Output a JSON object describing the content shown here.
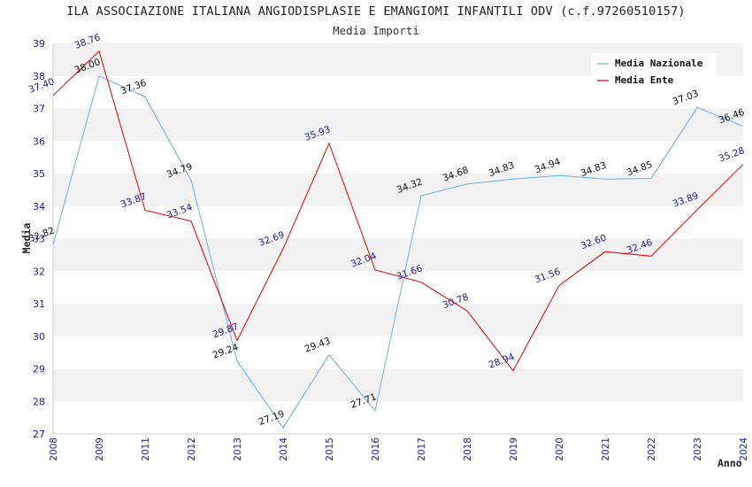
{
  "chart_data": {
    "type": "line",
    "title": "ILA ASSOCIAZIONE ITALIANA ANGIODISPLASIE E EMANGIOMI INFANTILI ODV (c.f.97260510157)",
    "subtitle": "Media Importi",
    "xlabel": "Anno",
    "ylabel": "Media",
    "ylim": [
      27,
      39
    ],
    "yticks": [
      27,
      28,
      29,
      30,
      31,
      32,
      33,
      34,
      35,
      36,
      37,
      38,
      39
    ],
    "categories": [
      "2008",
      "2009",
      "2011",
      "2012",
      "2013",
      "2014",
      "2015",
      "2016",
      "2017",
      "2018",
      "2019",
      "2020",
      "2021",
      "2022",
      "2023",
      "2024"
    ],
    "grid": "horizontal bands",
    "legend_position": "top-right",
    "series": [
      {
        "name": "Media Nazionale",
        "color": "#6aaee8",
        "values": [
          32.82,
          38.0,
          37.36,
          34.79,
          29.24,
          27.19,
          29.43,
          27.71,
          34.32,
          34.68,
          34.83,
          34.94,
          34.83,
          34.85,
          37.03,
          36.46
        ],
        "labels": [
          "32.82",
          "38.00",
          "37.36",
          "34.79",
          "29.24",
          "27.19",
          "29.43",
          "27.71",
          "34.32",
          "34.68",
          "34.83",
          "34.94",
          "34.83",
          "34.85",
          "37.03",
          "36.46"
        ]
      },
      {
        "name": "Media Ente",
        "color": "#dd0000",
        "values": [
          37.4,
          38.76,
          33.87,
          33.54,
          29.87,
          32.69,
          35.93,
          32.04,
          31.66,
          30.78,
          28.94,
          31.56,
          32.6,
          32.46,
          33.89,
          35.28
        ],
        "labels": [
          "37.40",
          "38.76",
          "33.87",
          "33.54",
          "29.87",
          "32.69",
          "35.93",
          "32.04",
          "31.66",
          "30.78",
          "28.94",
          "31.56",
          "32.60",
          "32.46",
          "33.89",
          "35.28"
        ]
      }
    ]
  }
}
